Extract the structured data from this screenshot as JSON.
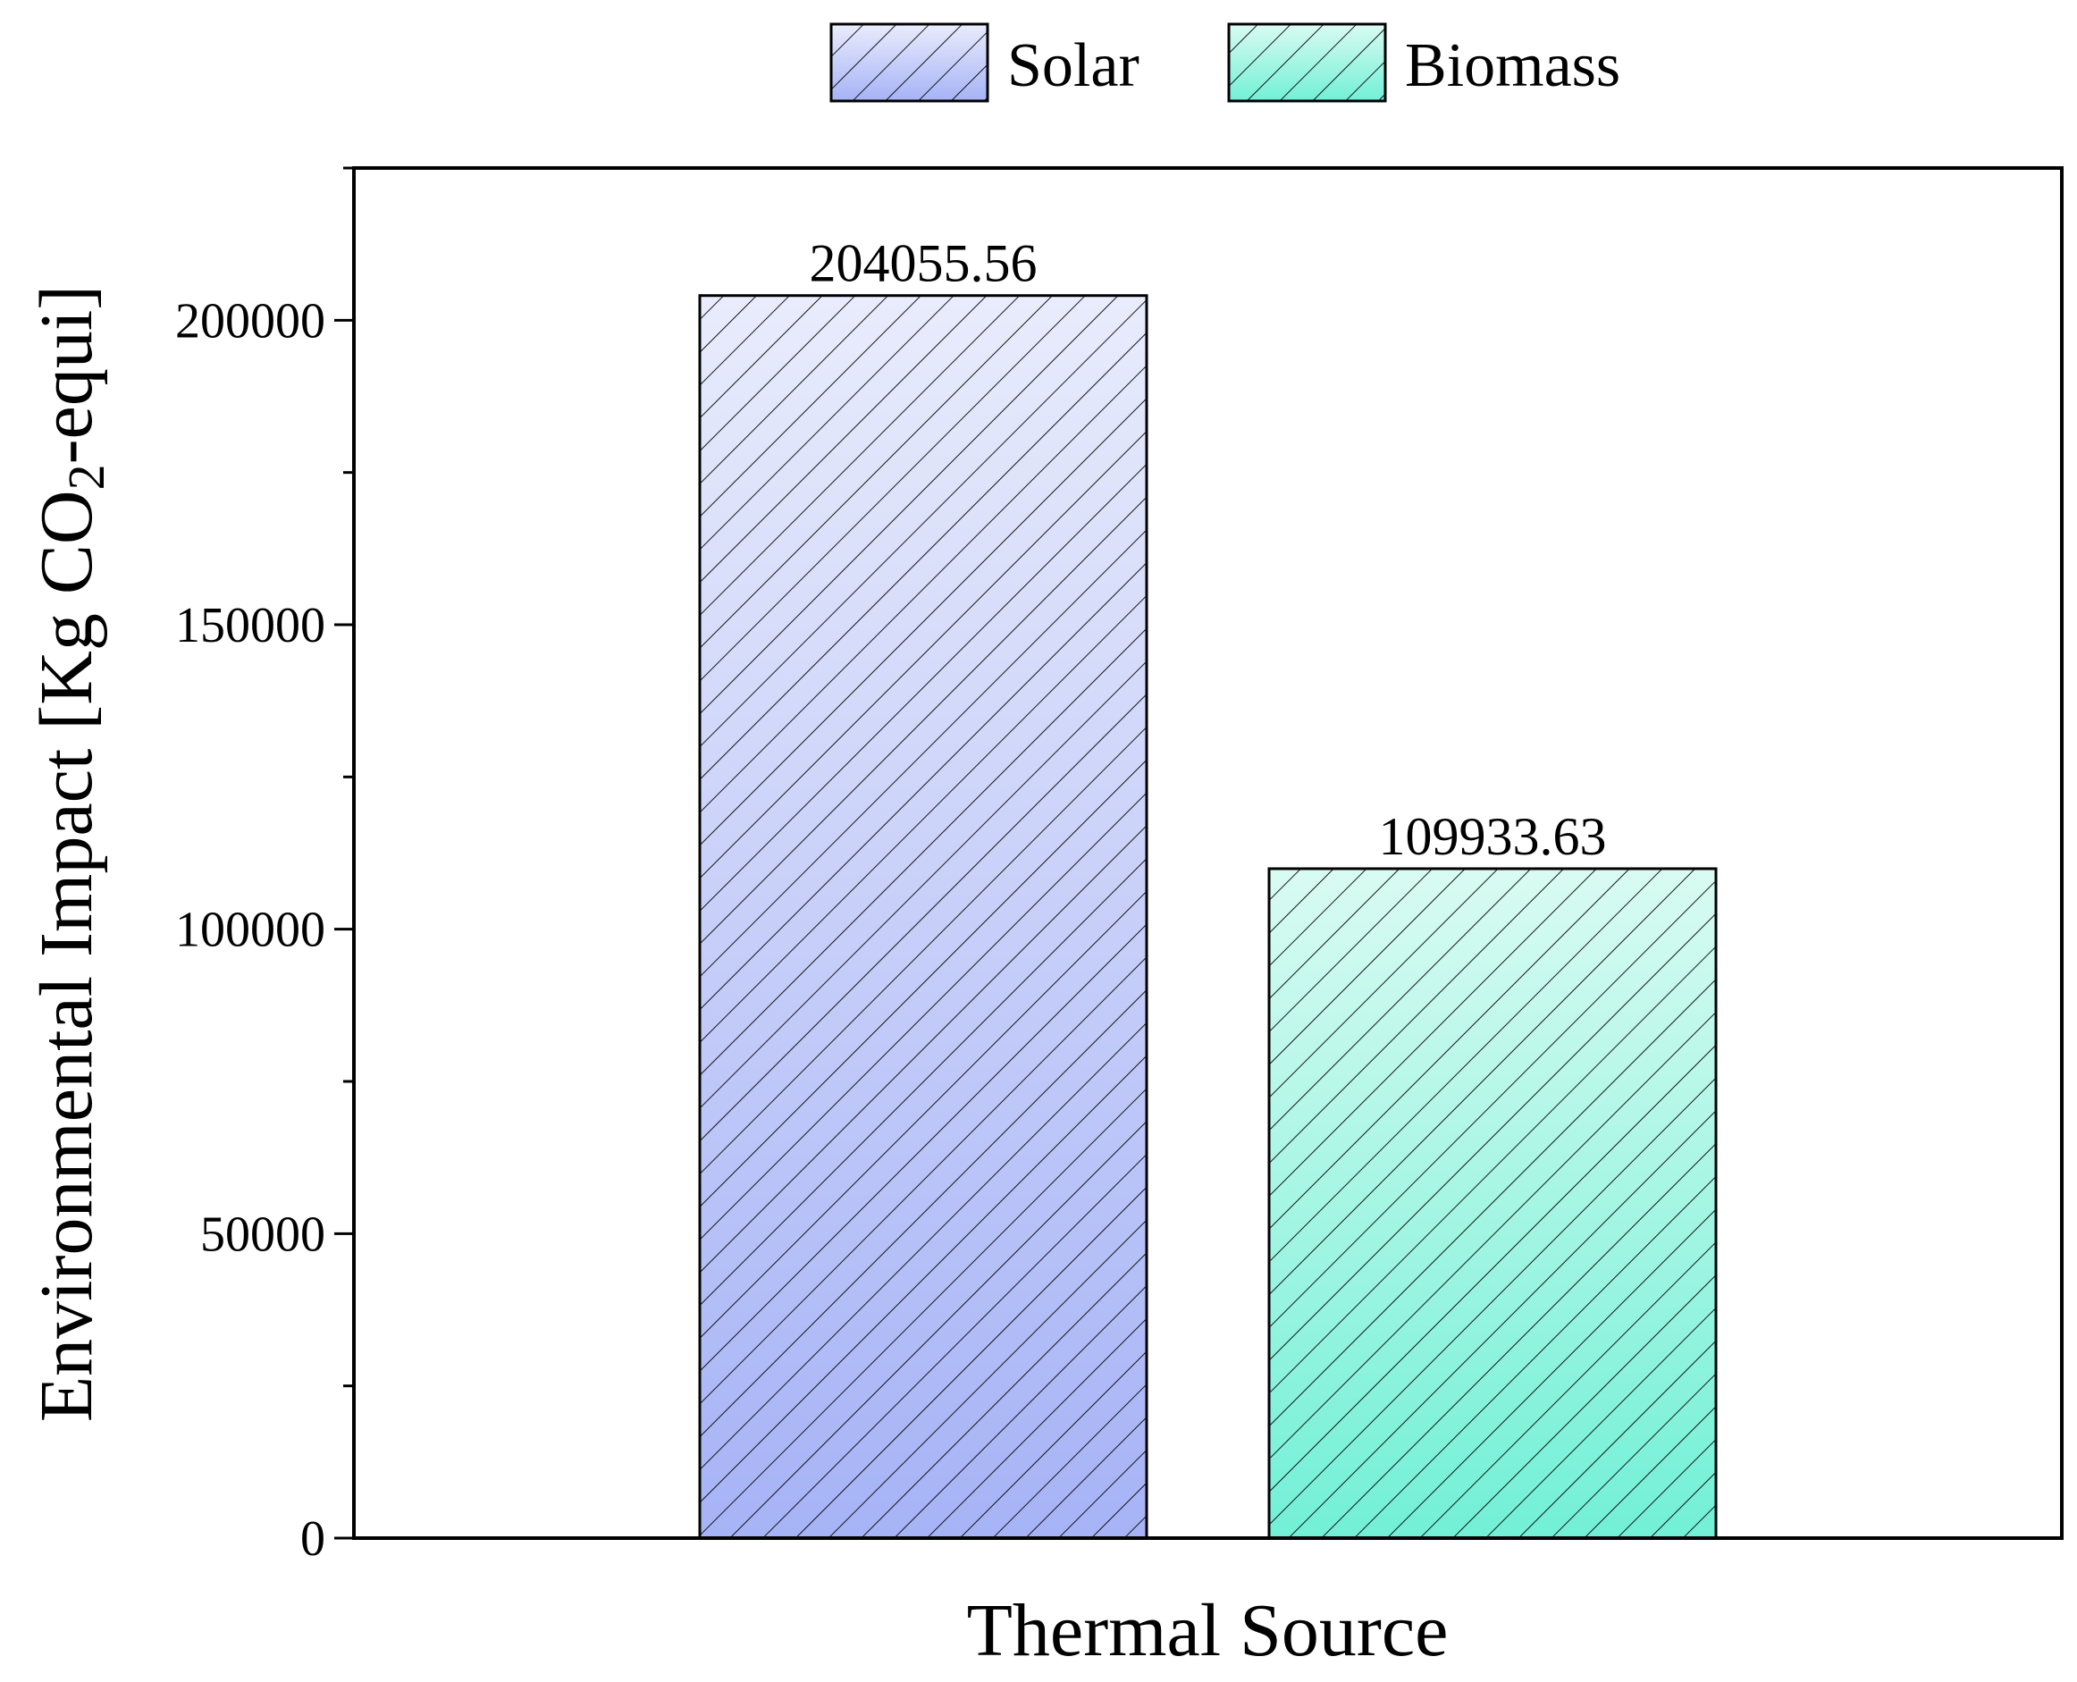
{
  "chart_data": {
    "type": "bar",
    "xlabel": "Thermal Source",
    "ylabel": {
      "main": "Environmental Impact [Kg CO",
      "subscript": "2",
      "suffix": "-equi]"
    },
    "ylim": [
      0,
      225000
    ],
    "yticks": [
      0,
      50000,
      100000,
      150000,
      200000
    ],
    "grid": false,
    "legend_position": "top-center",
    "series": [
      {
        "name": "Solar",
        "value": 204055.56,
        "label": "204055.56",
        "color_top": "#e9ecfc",
        "color_bottom": "#a6b3f6"
      },
      {
        "name": "Biomass",
        "value": 109933.63,
        "label": "109933.63",
        "color_top": "#d9fbf2",
        "color_bottom": "#72f0d6"
      }
    ]
  }
}
